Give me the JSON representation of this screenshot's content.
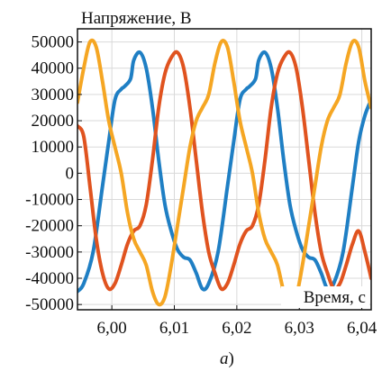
{
  "chart_data": {
    "type": "line",
    "ylabel": "Напряжение, В",
    "xlabel": "Время, с",
    "caption_letter": "a",
    "caption_suffix": ")",
    "xlim": [
      5.9945,
      6.0415
    ],
    "ylim": [
      -52000,
      55000
    ],
    "grid": true,
    "x_ticks": [
      6.0,
      6.01,
      6.02,
      6.03,
      6.04
    ],
    "x_tick_labels": [
      "6,00",
      "6,01",
      "6,02",
      "6,03",
      "6,04"
    ],
    "y_ticks": [
      50000,
      40000,
      30000,
      20000,
      10000,
      0,
      -10000,
      -20000,
      -30000,
      -40000,
      -50000
    ],
    "y_tick_labels": [
      "50000",
      "40000",
      "30000",
      "20000",
      "10000",
      "0",
      "-10000",
      "-20000",
      "-30000",
      "-40000",
      "-50000"
    ],
    "series": [
      {
        "color": "#1f7fc4",
        "x": [
          5.9945,
          5.9955,
          5.997,
          5.9985,
          5.9995,
          6.0005,
          6.0015,
          6.002,
          6.003,
          6.0035,
          6.0045,
          6.0055,
          6.0065,
          6.0075,
          6.0085,
          6.0095,
          6.0105,
          6.0115,
          6.0125,
          6.0135,
          6.0145,
          6.0155,
          6.017,
          6.0185,
          6.0195,
          6.0205,
          6.0215,
          6.022,
          6.023,
          6.0235,
          6.0245,
          6.0255,
          6.0265,
          6.0275,
          6.0285,
          6.0295,
          6.0305,
          6.0315,
          6.0325,
          6.0335,
          6.0345,
          6.0355,
          6.037,
          6.0385,
          6.0395,
          6.0405,
          6.0415
        ],
        "y": [
          -45000,
          -42000,
          -30000,
          -5000,
          12000,
          28000,
          32000,
          33000,
          36000,
          43000,
          46000,
          40000,
          25000,
          5000,
          -12000,
          -22000,
          -29000,
          -32000,
          -33000,
          -38000,
          -44000,
          -42000,
          -30000,
          -5000,
          12000,
          28000,
          32000,
          33000,
          36000,
          43000,
          46000,
          40000,
          25000,
          5000,
          -12000,
          -22000,
          -29000,
          -32000,
          -33000,
          -38000,
          -44000,
          -42000,
          -30000,
          -5000,
          12000,
          22000,
          28000
        ]
      },
      {
        "color": "#e0531f",
        "x": [
          5.9945,
          5.9955,
          5.9965,
          5.9975,
          5.9985,
          5.9995,
          6.0005,
          6.0015,
          6.0025,
          6.0035,
          6.0045,
          6.0055,
          6.0065,
          6.0075,
          6.0085,
          6.0095,
          6.0105,
          6.0115,
          6.0125,
          6.0135,
          6.0145,
          6.0155,
          6.0165,
          6.0175,
          6.0185,
          6.0195,
          6.0205,
          6.0215,
          6.0225,
          6.0235,
          6.0245,
          6.0255,
          6.0265,
          6.0275,
          6.0285,
          6.0295,
          6.0305,
          6.0315,
          6.0325,
          6.0335,
          6.0345,
          6.0355,
          6.0365,
          6.0375,
          6.0385,
          6.0395,
          6.0405,
          6.0415
        ],
        "y": [
          18000,
          14000,
          -5000,
          -25000,
          -38000,
          -44000,
          -42000,
          -35000,
          -27000,
          -22000,
          -20000,
          -12000,
          5000,
          25000,
          38000,
          44000,
          46000,
          40000,
          25000,
          5000,
          -15000,
          -30000,
          -38000,
          -44000,
          -42000,
          -35000,
          -27000,
          -22000,
          -20000,
          -12000,
          5000,
          25000,
          38000,
          44000,
          46000,
          40000,
          25000,
          5000,
          -15000,
          -30000,
          -38000,
          -44000,
          -42000,
          -35000,
          -27000,
          -22000,
          -30000,
          -40000
        ]
      },
      {
        "color": "#f5a623",
        "x": [
          5.9945,
          5.9955,
          5.9965,
          5.9975,
          5.9985,
          5.9995,
          6.0005,
          6.0015,
          6.0025,
          6.0035,
          6.0045,
          6.0055,
          6.0065,
          6.0075,
          6.0085,
          6.0095,
          6.0105,
          6.0115,
          6.0125,
          6.0135,
          6.0145,
          6.0155,
          6.0165,
          6.0175,
          6.0185,
          6.0195,
          6.0205,
          6.0215,
          6.0225,
          6.0235,
          6.0245,
          6.0255,
          6.0265,
          6.0275,
          6.0285,
          6.0295,
          6.0305,
          6.0315,
          6.0325,
          6.0335,
          6.0345,
          6.0355,
          6.0365,
          6.0375,
          6.0385,
          6.0395,
          6.0405,
          6.0415
        ],
        "y": [
          27000,
          40000,
          50000,
          48000,
          35000,
          20000,
          10000,
          0,
          -15000,
          -25000,
          -30000,
          -35000,
          -45000,
          -50000,
          -47000,
          -35000,
          -20000,
          -5000,
          10000,
          20000,
          25000,
          30000,
          42000,
          50000,
          48000,
          35000,
          20000,
          10000,
          0,
          -15000,
          -25000,
          -30000,
          -35000,
          -45000,
          -50000,
          -47000,
          -35000,
          -20000,
          -5000,
          10000,
          20000,
          25000,
          30000,
          42000,
          50000,
          48000,
          35000,
          25000
        ]
      }
    ]
  }
}
